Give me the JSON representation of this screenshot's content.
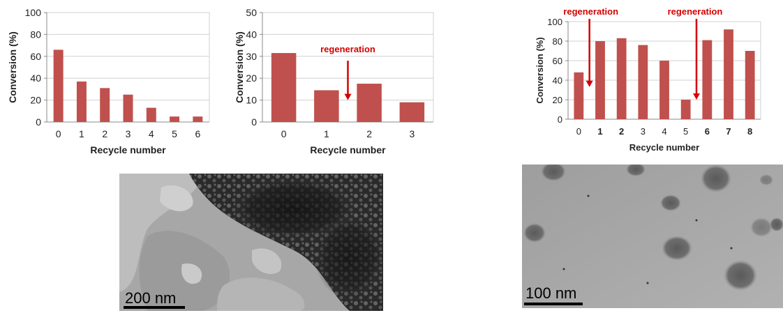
{
  "chart_data": [
    {
      "type": "bar",
      "ylabel": "Conversion (%)",
      "xlabel": "Recycle number",
      "categories": [
        "0",
        "1",
        "2",
        "3",
        "4",
        "5",
        "6"
      ],
      "values": [
        66,
        37,
        31,
        25,
        13,
        5,
        5
      ],
      "ylim": [
        0,
        100
      ],
      "yticks": [
        0,
        20,
        40,
        60,
        80,
        100
      ],
      "grid": true,
      "bar_color": "#c0504d",
      "annotations": []
    },
    {
      "type": "bar",
      "ylabel": "Conversion (%)",
      "xlabel": "Recycle number",
      "categories": [
        "0",
        "1",
        "2",
        "3"
      ],
      "values": [
        31.5,
        14.5,
        17.5,
        9
      ],
      "ylim": [
        0,
        50
      ],
      "yticks": [
        0,
        10,
        20,
        30,
        40,
        50
      ],
      "grid": true,
      "bar_color": "#c0504d",
      "annotations": [
        {
          "text": "regeneration",
          "color": "#d40000",
          "arrow_at_x": 1.5,
          "arrow_to_y": 10,
          "arrow_from_y": 28
        }
      ]
    },
    {
      "type": "bar",
      "ylabel": "Conversion (%)",
      "xlabel": "Recycle number",
      "categories": [
        "0",
        "1",
        "2",
        "3",
        "4",
        "5",
        "6",
        "7",
        "8"
      ],
      "values": [
        48,
        80,
        83,
        76,
        60,
        20,
        81,
        92,
        70
      ],
      "ylim": [
        0,
        100
      ],
      "yticks": [
        0,
        20,
        40,
        60,
        80,
        100
      ],
      "grid": true,
      "bar_color": "#c0504d",
      "annotations": [
        {
          "text": "regeneration",
          "color": "#d40000",
          "arrow_at_x": 0.5,
          "arrow_to_y": 33,
          "arrow_from_y": 100
        },
        {
          "text": "regeneration",
          "color": "#d40000",
          "arrow_at_x": 5.5,
          "arrow_to_y": 20,
          "arrow_from_y": 100
        }
      ]
    }
  ],
  "images": {
    "tem_left": {
      "scalebar": "200 nm"
    },
    "tem_right": {
      "scalebar": "100 nm"
    }
  }
}
